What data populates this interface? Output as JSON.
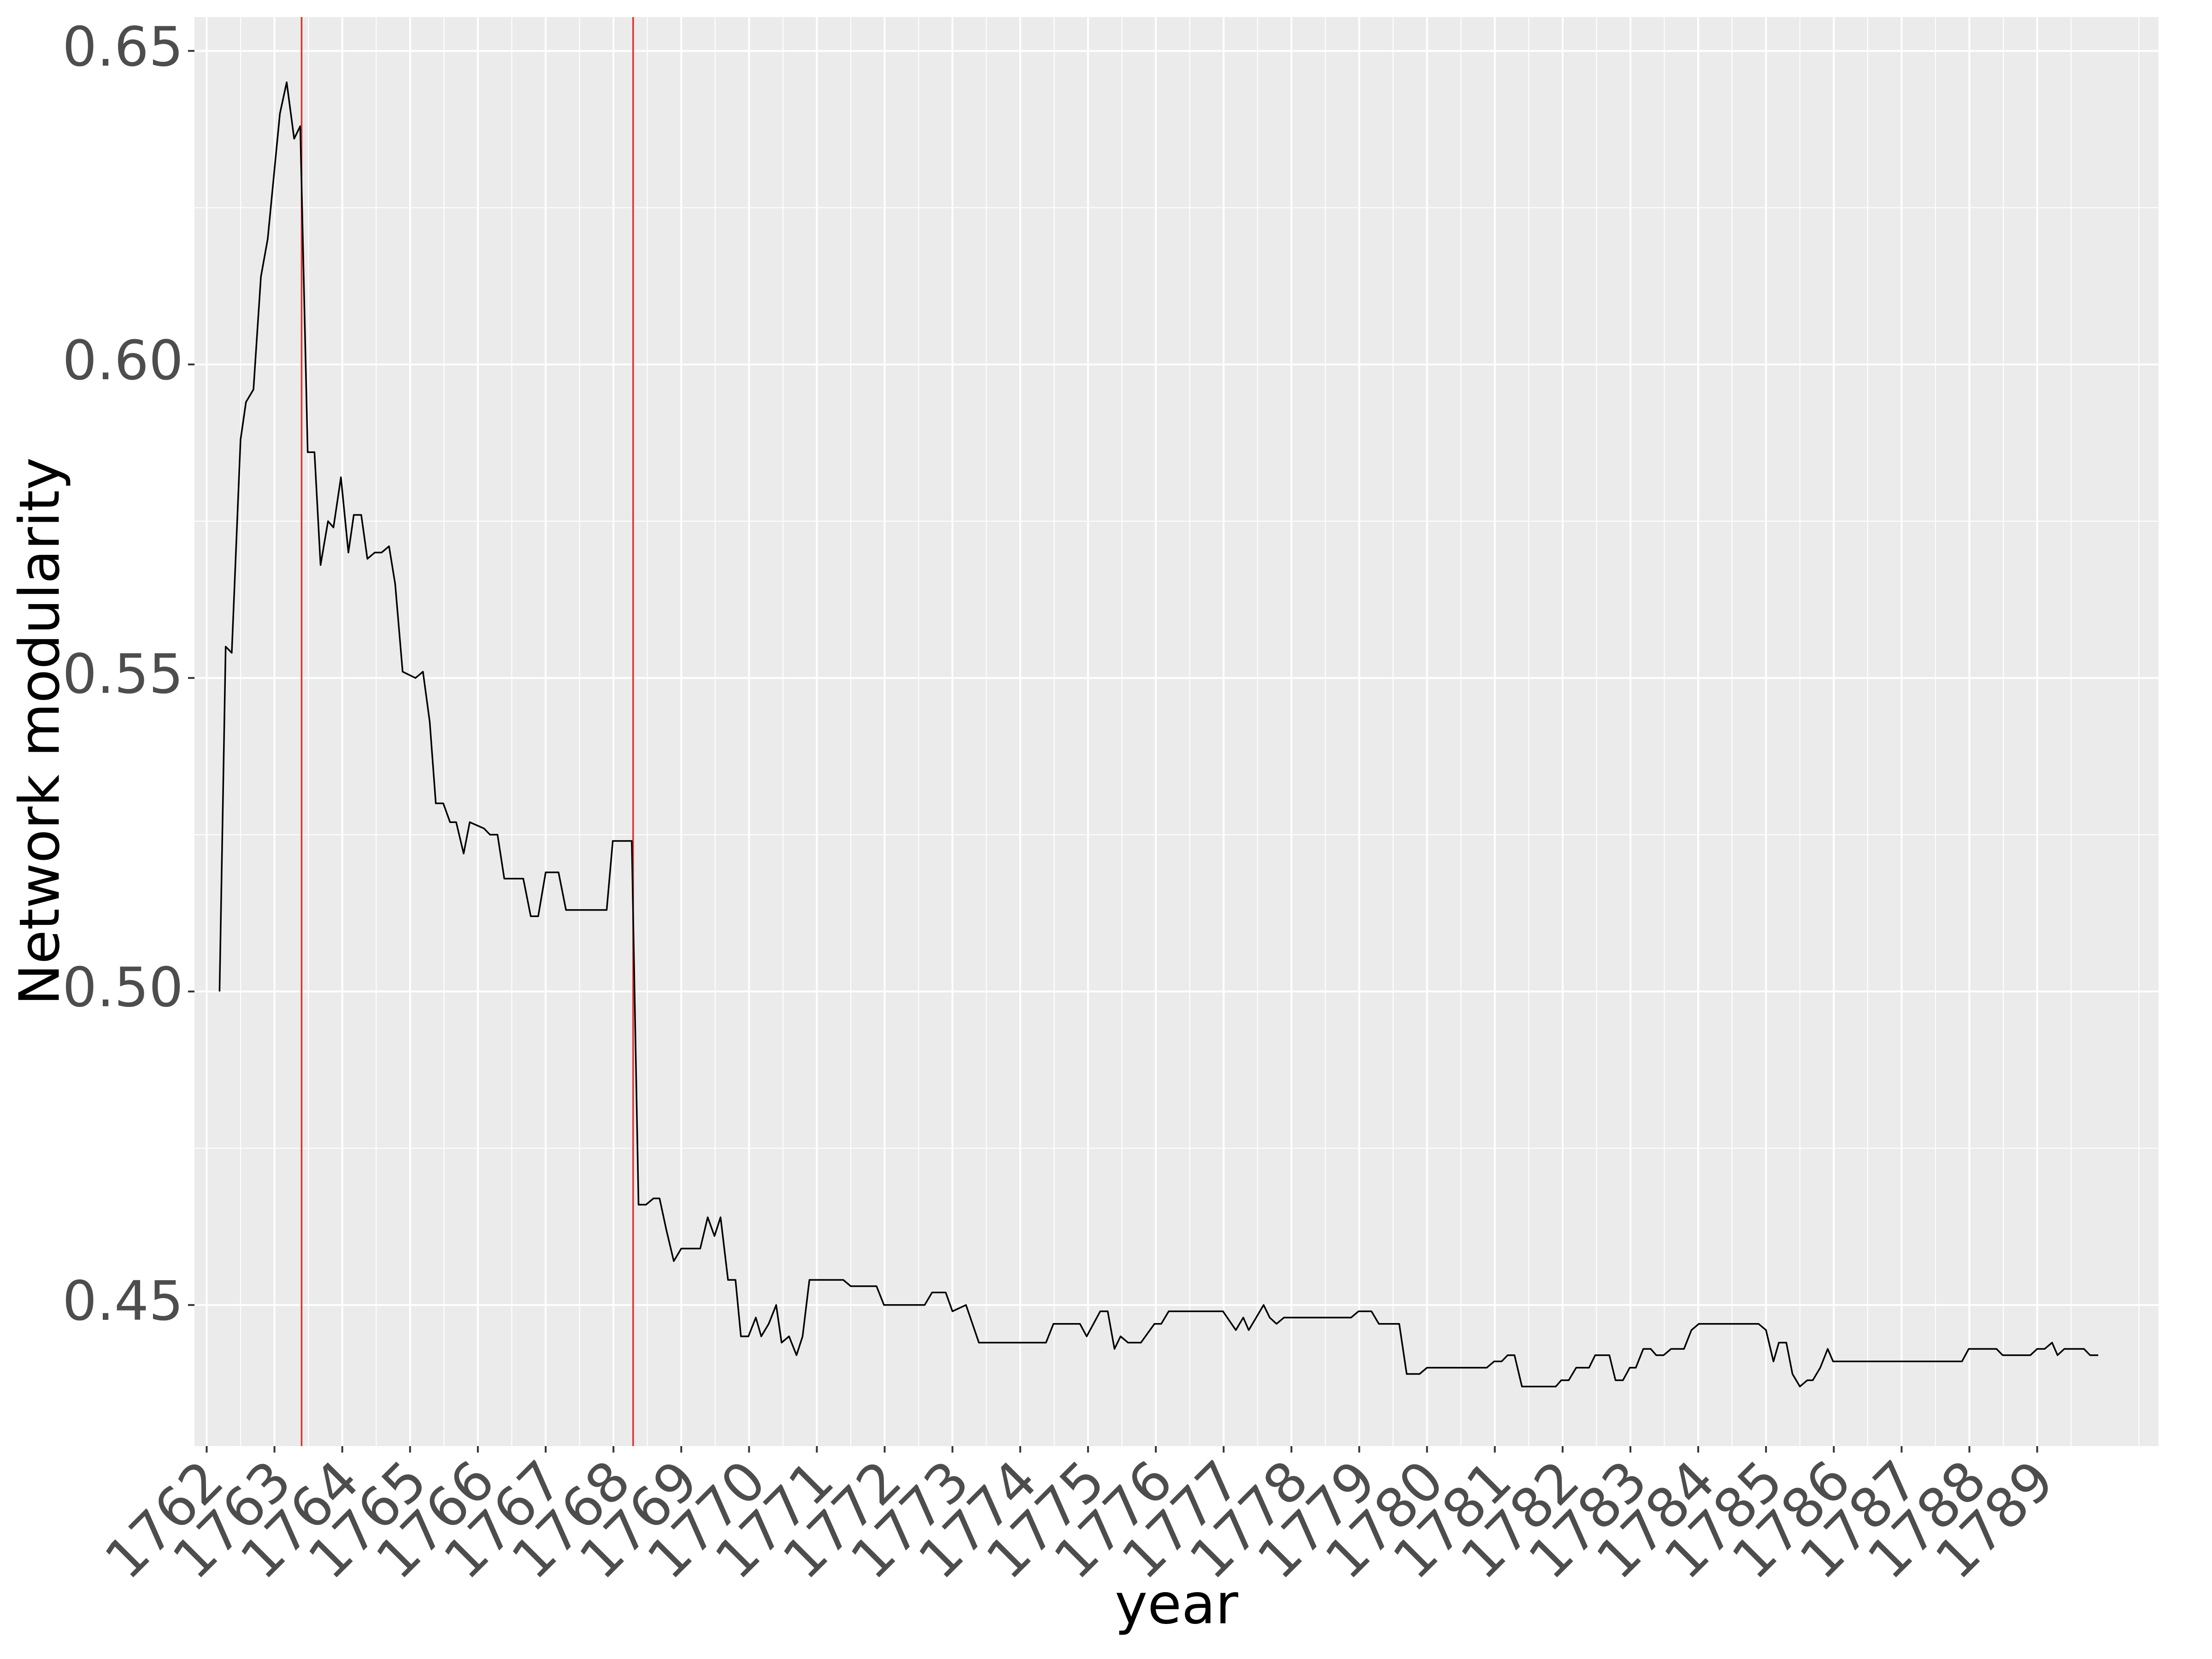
{
  "chart_data": {
    "type": "line",
    "xlabel": "year",
    "ylabel": "Network modularity",
    "x": [
      1762.19,
      1762.28,
      1762.37,
      1762.5,
      1762.58,
      1762.69,
      1762.8,
      1762.9,
      1763.08,
      1763.18,
      1763.29,
      1763.38,
      1763.49,
      1763.59,
      1763.68,
      1763.79,
      1763.87,
      1763.98,
      1764.09,
      1764.17,
      1764.28,
      1764.37,
      1764.48,
      1764.58,
      1764.69,
      1764.78,
      1764.89,
      1765.08,
      1765.19,
      1765.29,
      1765.38,
      1765.49,
      1765.59,
      1765.68,
      1765.79,
      1765.88,
      1766.09,
      1766.18,
      1766.29,
      1766.39,
      1766.67,
      1766.78,
      1766.89,
      1767.0,
      1767.19,
      1767.3,
      1767.58,
      1767.68,
      1767.9,
      1767.99,
      1768.09,
      1768.27,
      1768.37,
      1768.48,
      1768.59,
      1768.68,
      1768.78,
      1768.89,
      1769.0,
      1769.08,
      1769.28,
      1769.39,
      1769.49,
      1769.58,
      1769.69,
      1769.8,
      1769.88,
      1769.99,
      1770.1,
      1770.18,
      1770.29,
      1770.4,
      1770.48,
      1770.59,
      1770.7,
      1770.79,
      1770.89,
      1771.0,
      1771.39,
      1771.5,
      1771.88,
      1771.99,
      1772.59,
      1772.7,
      1772.9,
      1773.0,
      1773.2,
      1773.39,
      1773.89,
      1773.99,
      1774.38,
      1774.49,
      1774.88,
      1774.98,
      1775.18,
      1775.29,
      1775.39,
      1775.48,
      1775.59,
      1775.78,
      1775.98,
      1776.08,
      1776.19,
      1776.77,
      1776.88,
      1776.99,
      1777.18,
      1777.29,
      1777.37,
      1777.48,
      1777.59,
      1777.68,
      1777.78,
      1777.89,
      1778.88,
      1778.99,
      1779.18,
      1779.29,
      1779.59,
      1779.7,
      1779.89,
      1780.0,
      1780.88,
      1780.99,
      1781.1,
      1781.19,
      1781.29,
      1781.4,
      1781.9,
      1781.98,
      1782.09,
      1782.2,
      1782.39,
      1782.48,
      1782.69,
      1782.78,
      1782.89,
      1782.99,
      1783.08,
      1783.19,
      1783.3,
      1783.38,
      1783.49,
      1783.6,
      1783.68,
      1783.79,
      1783.9,
      1784.01,
      1784.89,
      1785.0,
      1785.11,
      1785.19,
      1785.3,
      1785.39,
      1785.5,
      1785.61,
      1785.69,
      1785.8,
      1785.91,
      1785.99,
      1787.89,
      1787.99,
      1788.4,
      1788.49,
      1788.9,
      1789.0,
      1789.11,
      1789.22,
      1789.3,
      1789.4,
      1789.48,
      1789.69,
      1789.78,
      1789.9
    ],
    "values": [
      0.5,
      0.555,
      0.554,
      0.588,
      0.594,
      0.596,
      0.614,
      0.62,
      0.64,
      0.645,
      0.636,
      0.638,
      0.586,
      0.586,
      0.568,
      0.575,
      0.574,
      0.582,
      0.57,
      0.576,
      0.576,
      0.569,
      0.57,
      0.57,
      0.571,
      0.565,
      0.551,
      0.55,
      0.551,
      0.543,
      0.53,
      0.53,
      0.527,
      0.527,
      0.522,
      0.527,
      0.526,
      0.525,
      0.525,
      0.518,
      0.518,
      0.512,
      0.512,
      0.519,
      0.519,
      0.513,
      0.513,
      0.513,
      0.513,
      0.524,
      0.524,
      0.524,
      0.466,
      0.466,
      0.467,
      0.467,
      0.462,
      0.457,
      0.459,
      0.459,
      0.459,
      0.464,
      0.461,
      0.464,
      0.454,
      0.454,
      0.445,
      0.445,
      0.448,
      0.445,
      0.447,
      0.45,
      0.444,
      0.445,
      0.442,
      0.445,
      0.454,
      0.454,
      0.454,
      0.453,
      0.453,
      0.45,
      0.45,
      0.452,
      0.452,
      0.449,
      0.45,
      0.444,
      0.444,
      0.444,
      0.444,
      0.447,
      0.447,
      0.445,
      0.449,
      0.449,
      0.443,
      0.445,
      0.444,
      0.444,
      0.447,
      0.447,
      0.449,
      0.449,
      0.449,
      0.449,
      0.446,
      0.448,
      0.446,
      0.448,
      0.45,
      0.448,
      0.447,
      0.448,
      0.448,
      0.449,
      0.449,
      0.447,
      0.447,
      0.439,
      0.439,
      0.44,
      0.44,
      0.441,
      0.441,
      0.442,
      0.442,
      0.437,
      0.437,
      0.438,
      0.438,
      0.44,
      0.44,
      0.442,
      0.442,
      0.438,
      0.438,
      0.44,
      0.44,
      0.443,
      0.443,
      0.442,
      0.442,
      0.443,
      0.443,
      0.443,
      0.446,
      0.447,
      0.447,
      0.446,
      0.441,
      0.444,
      0.444,
      0.439,
      0.437,
      0.438,
      0.438,
      0.44,
      0.443,
      0.441,
      0.441,
      0.443,
      0.443,
      0.442,
      0.442,
      0.443,
      0.443,
      0.444,
      0.442,
      0.443,
      0.443,
      0.443,
      0.442,
      0.442
    ],
    "color": "#000000",
    "vlines": {
      "x": [
        1763.4,
        1768.29
      ],
      "color": "#e0302b"
    },
    "xlim": [
      1761.82,
      1790.79
    ],
    "xticks": [
      1762,
      1763,
      1764,
      1765,
      1766,
      1767,
      1768,
      1769,
      1770,
      1771,
      1772,
      1773,
      1774,
      1775,
      1776,
      1777,
      1778,
      1779,
      1780,
      1781,
      1782,
      1783,
      1784,
      1785,
      1786,
      1787,
      1788,
      1789
    ],
    "ylim": [
      0.4275,
      0.6554
    ],
    "yticks": [
      0.45,
      {
        "value": 0.5,
        "label": "0.50"
      },
      0.55,
      {
        "value": 0.6,
        "label": "0.60"
      },
      0.65
    ],
    "grid": true
  }
}
